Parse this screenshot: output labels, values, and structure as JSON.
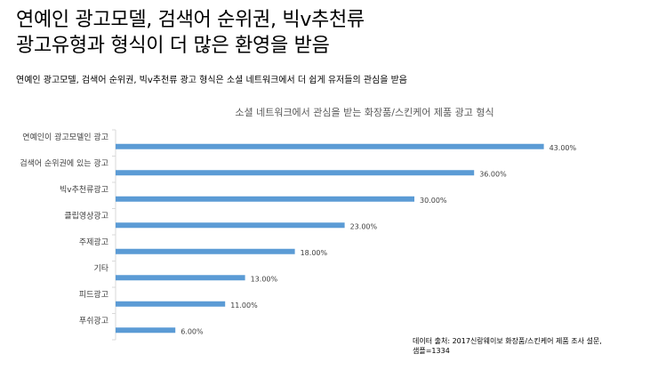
{
  "slide": {
    "title_line1": "연예인 광고모델, 검색어 순위권, 빅v추천류",
    "title_line2": "광고유형과 형식이 더 많은 환영을 받음",
    "subtitle": "연예인 광고모델, 검색어 순위권, 빅v추천류 광고 형식은 소셜 네트워크에서 더 쉽게 유저들의 관심을 받음",
    "source_line1": "데이터 출처: 2017신랑웨이보 화장품/스킨케어 제품 조사 설문,",
    "source_line2": "샘플=1334"
  },
  "chart_data": {
    "type": "bar",
    "orientation": "horizontal",
    "title": "소셜 네트워크에서 관심을 받는 화장품/스킨케어 제품 광고 형식",
    "categories": [
      "연예인이 광고모델인 광고",
      "검색어 순위권에 있는 광고",
      "빅v추천류광고",
      "클립영상광고",
      "주제광고",
      "기타",
      "피드광고",
      "푸쉬광고"
    ],
    "values": [
      43,
      36,
      30,
      23,
      18,
      13,
      11,
      6
    ],
    "value_labels": [
      "43.00%",
      "36.00%",
      "30.00%",
      "23.00%",
      "18.00%",
      "13.00%",
      "11.00%",
      "6.00%"
    ],
    "xlim": [
      0,
      50
    ],
    "xlabel": "",
    "ylabel": "",
    "grid": false,
    "bar_color": "#5B9BD5"
  }
}
